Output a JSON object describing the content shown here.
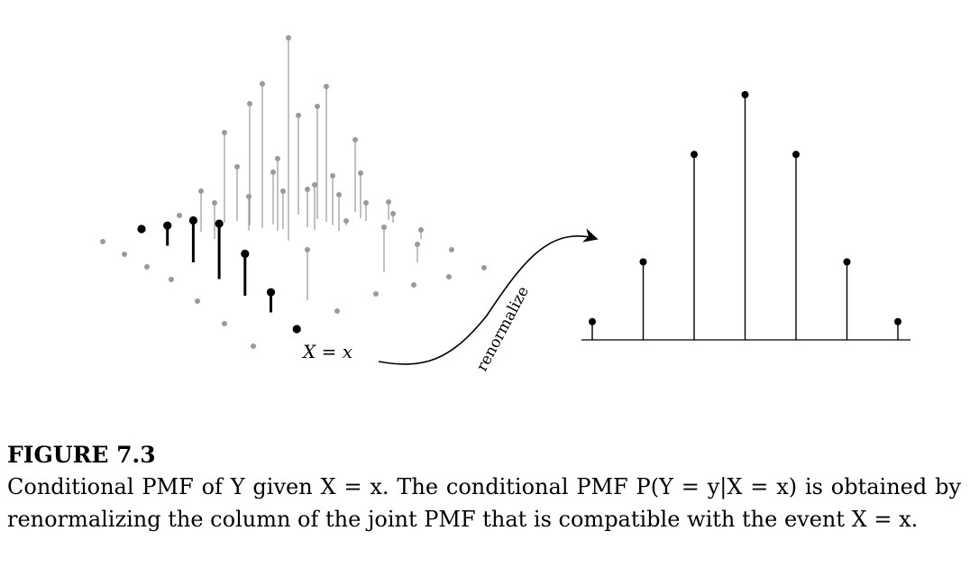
{
  "figure": {
    "x_label": "X = x",
    "arrow_label": "renormalize",
    "colors": {
      "highlight": "#000000",
      "background_pmf": "#9a9a9a"
    },
    "joint_pmf": {
      "highlighted_column": [
        0.0,
        0.12,
        0.25,
        0.33,
        0.25,
        0.12,
        0.0
      ]
    },
    "conditional_pmf": {
      "values": [
        0.05,
        0.3,
        0.75,
        1.0,
        0.75,
        0.3,
        0.05
      ]
    }
  },
  "caption": {
    "title": "FIGURE 7.3",
    "body": "Conditional PMF of Y given X = x. The conditional PMF P(Y = y|X = x) is obtained by renormalizing the column of the joint PMF that is compatible with the event X = x."
  }
}
